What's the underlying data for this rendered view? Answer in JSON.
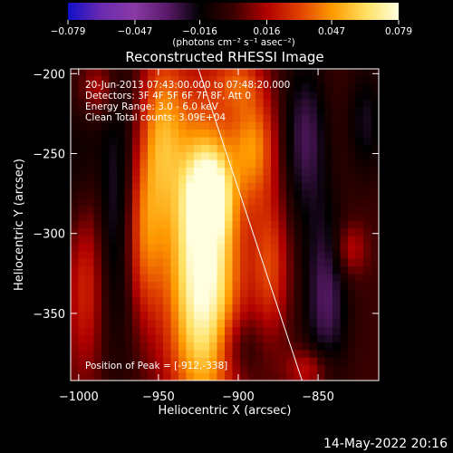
{
  "chart_data": {
    "type": "heatmap",
    "title": "Reconstructed RHESSI Image",
    "xlabel": "Heliocentric X (arcsec)",
    "ylabel": "Heliocentric Y (arcsec)",
    "xlim": [
      -1005,
      -812
    ],
    "ylim": [
      -392,
      -197
    ],
    "x_ticks": [
      -1000,
      -950,
      -900,
      -850
    ],
    "x_tick_labels": [
      "−1000",
      "−950",
      "−900",
      "−850"
    ],
    "y_ticks": [
      -200,
      -250,
      -300,
      -350
    ],
    "y_tick_labels": [
      "−200",
      "−250",
      "−300",
      "−350"
    ],
    "colorbar": {
      "range": [
        -0.079,
        0.079
      ],
      "ticks": [
        -0.079,
        -0.047,
        -0.016,
        0.016,
        0.047,
        0.079
      ],
      "tick_labels": [
        "−0.079",
        "−0.047",
        "−0.016",
        "0.016",
        "0.047",
        "0.079"
      ],
      "unit_label": "(photons cm⁻² s⁻¹ asec⁻²)",
      "colors": [
        "#1010c8",
        "#6a2ab0",
        "#8a3aa6",
        "#5a1a6a",
        "#000000",
        "#3a0000",
        "#b00000",
        "#e04000",
        "#ff9a00",
        "#ffe060",
        "#ffffe0"
      ]
    },
    "annotations": [
      "20-Jun-2013 07:43:00.000 to 07:48:20.000",
      "Detectors: 3F 4F 5F 6F 7F 8F, Att 0",
      "Energy Range: 3.0 - 6.0 keV",
      "Clean     Total counts: 3.09E+04"
    ],
    "peak_label": "Position of Peak = [-912,-338]",
    "peak_position": [
      -912,
      -338
    ],
    "limb_line": [
      [
        -925,
        -197
      ],
      [
        -860,
        -392
      ]
    ],
    "sources": [
      {
        "x": -922,
        "y": -320,
        "sx": 16,
        "sy": 68,
        "amp": 0.085
      },
      {
        "x": -918,
        "y": -275,
        "sx": 9,
        "sy": 18,
        "amp": 0.045
      },
      {
        "x": -960,
        "y": -300,
        "sx": 9,
        "sy": 40,
        "amp": 0.045
      },
      {
        "x": -948,
        "y": -235,
        "sx": 10,
        "sy": 38,
        "amp": 0.04
      },
      {
        "x": -995,
        "y": -320,
        "sx": 9,
        "sy": 45,
        "amp": 0.035
      },
      {
        "x": -890,
        "y": -245,
        "sx": 10,
        "sy": 25,
        "amp": 0.04
      },
      {
        "x": -880,
        "y": -320,
        "sx": 8,
        "sy": 30,
        "amp": 0.03
      },
      {
        "x": -855,
        "y": -385,
        "sx": 10,
        "sy": 10,
        "amp": 0.025
      },
      {
        "x": -830,
        "y": -310,
        "sx": 7,
        "sy": 12,
        "amp": 0.022
      },
      {
        "x": -988,
        "y": -210,
        "sx": 8,
        "sy": 12,
        "amp": 0.022
      },
      {
        "x": -900,
        "y": -205,
        "sx": 10,
        "sy": 12,
        "amp": 0.024
      },
      {
        "x": -975,
        "y": -290,
        "sx": 12,
        "sy": 60,
        "amp": -0.03
      },
      {
        "x": -1000,
        "y": -270,
        "sx": 8,
        "sy": 40,
        "amp": -0.02
      },
      {
        "x": -858,
        "y": -240,
        "sx": 10,
        "sy": 35,
        "amp": -0.028
      },
      {
        "x": -845,
        "y": -340,
        "sx": 10,
        "sy": 40,
        "amp": -0.03
      },
      {
        "x": -900,
        "y": -370,
        "sx": 10,
        "sy": 15,
        "amp": -0.018
      },
      {
        "x": -820,
        "y": -230,
        "sx": 8,
        "sy": 25,
        "amp": -0.02
      }
    ]
  },
  "footer": {
    "timestamp": "14-May-2022 20:16"
  }
}
